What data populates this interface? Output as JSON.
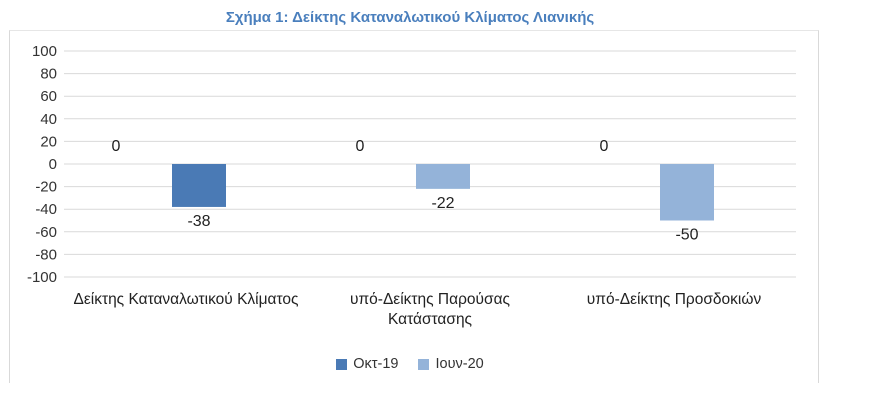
{
  "chart_data": {
    "type": "bar",
    "title": "Σχήμα 1: Δείκτης Καταναλωτικού Κλίματος Λιανικής",
    "categories": [
      [
        "Δείκτης Καταναλωτικού Κλίματος"
      ],
      [
        "υπό-Δείκτης Παρούσας",
        "Κατάστασης"
      ],
      [
        "υπό-Δείκτης Προσδοκιών"
      ]
    ],
    "series": [
      {
        "name": "Οκτ-19",
        "color": "#4a7ab5",
        "values": [
          0,
          0,
          0
        ]
      },
      {
        "name": "Ιουν-20",
        "color": "#94b3d9",
        "values": [
          -38,
          -22,
          -50
        ]
      }
    ],
    "bar_colors": [
      "#4a7ab5",
      "#94b3d9",
      "#94b3d9"
    ],
    "ylim": [
      -100,
      100
    ],
    "yticks": [
      100,
      80,
      60,
      40,
      20,
      0,
      -20,
      -40,
      -60,
      -80,
      -100
    ],
    "grid": true,
    "legend_position": "bottom"
  }
}
